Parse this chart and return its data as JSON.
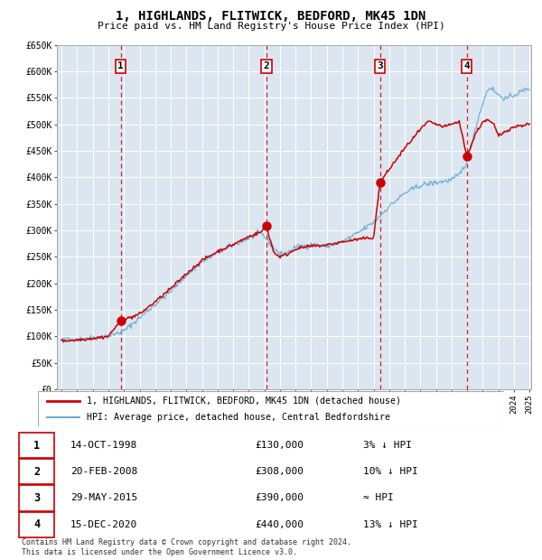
{
  "title": "1, HIGHLANDS, FLITWICK, BEDFORD, MK45 1DN",
  "subtitle": "Price paid vs. HM Land Registry's House Price Index (HPI)",
  "background_color": "#dce6f0",
  "plot_bg_color": "#dce6f0",
  "grid_color": "#ffffff",
  "ylim": [
    0,
    650000
  ],
  "yticks": [
    0,
    50000,
    100000,
    150000,
    200000,
    250000,
    300000,
    350000,
    400000,
    450000,
    500000,
    550000,
    600000,
    650000
  ],
  "ytick_labels": [
    "£0",
    "£50K",
    "£100K",
    "£150K",
    "£200K",
    "£250K",
    "£300K",
    "£350K",
    "£400K",
    "£450K",
    "£500K",
    "£550K",
    "£600K",
    "£650K"
  ],
  "hpi_color": "#6baed6",
  "price_color": "#cc0000",
  "sale_marker_color": "#cc0000",
  "dashed_line_color": "#cc0000",
  "sales": [
    {
      "date": "1998-10-14",
      "price": 130000,
      "label": "1"
    },
    {
      "date": "2008-02-20",
      "price": 308000,
      "label": "2"
    },
    {
      "date": "2015-05-29",
      "price": 390000,
      "label": "3"
    },
    {
      "date": "2020-12-15",
      "price": 440000,
      "label": "4"
    }
  ],
  "sale_times": [
    1998.79,
    2008.13,
    2015.41,
    2020.96
  ],
  "sale_prices": [
    130000,
    308000,
    390000,
    440000
  ],
  "sale_labels": [
    "1",
    "2",
    "3",
    "4"
  ],
  "legend_entries": [
    "1, HIGHLANDS, FLITWICK, BEDFORD, MK45 1DN (detached house)",
    "HPI: Average price, detached house, Central Bedfordshire"
  ],
  "table_rows": [
    [
      "1",
      "14-OCT-1998",
      "£130,000",
      "3% ↓ HPI"
    ],
    [
      "2",
      "20-FEB-2008",
      "£308,000",
      "10% ↓ HPI"
    ],
    [
      "3",
      "29-MAY-2015",
      "£390,000",
      "≈ HPI"
    ],
    [
      "4",
      "15-DEC-2020",
      "£440,000",
      "13% ↓ HPI"
    ]
  ],
  "footnote": "Contains HM Land Registry data © Crown copyright and database right 2024.\nThis data is licensed under the Open Government Licence v3.0.",
  "xstart_year": 1995,
  "xend_year": 2025
}
